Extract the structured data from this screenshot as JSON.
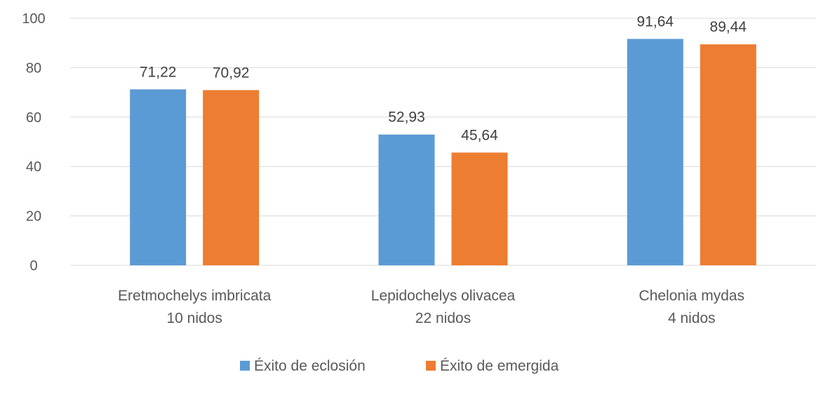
{
  "chart_data": {
    "type": "bar",
    "categories": [
      [
        "Eretmochelys imbricata",
        "10 nidos"
      ],
      [
        "Lepidochelys olivacea",
        "22 nidos"
      ],
      [
        "Chelonia mydas",
        "4 nidos"
      ]
    ],
    "series": [
      {
        "name": "Éxito de eclosión",
        "values": [
          "71,22",
          "52,93",
          "91,64"
        ],
        "color": "#5b9bd5"
      },
      {
        "name": "Éxito de emergida",
        "values": [
          "70,92",
          "45,64",
          "89,44"
        ],
        "color": "#ed7d31"
      }
    ],
    "yticks": [
      "0",
      "20",
      "40",
      "60",
      "80",
      "100"
    ],
    "ylim": [
      0,
      100
    ],
    "grid": true,
    "legend_position": "bottom"
  }
}
